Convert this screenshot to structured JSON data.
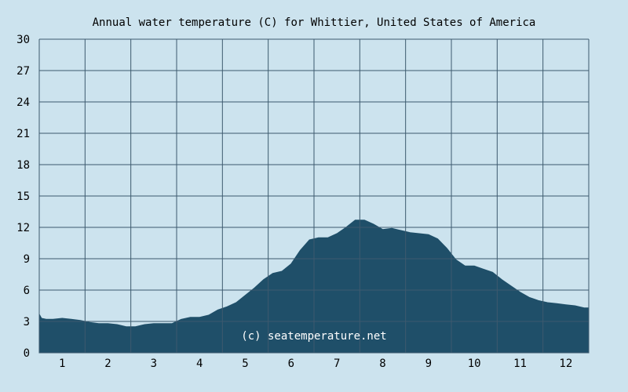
{
  "chart_data": {
    "type": "area",
    "title": "Annual water temperature (C) for Whittier, United States of America",
    "xlabel": "",
    "ylabel": "",
    "ylim": [
      0,
      30
    ],
    "yticks": [
      0,
      3,
      6,
      9,
      12,
      15,
      18,
      21,
      24,
      27,
      30
    ],
    "xlim": [
      0.5,
      12.5
    ],
    "xticks": [
      1,
      2,
      3,
      4,
      5,
      6,
      7,
      8,
      9,
      10,
      11,
      12
    ],
    "grid": true,
    "watermark": "(c) seatemperature.net",
    "colors": {
      "background": "#cce3ee",
      "plot_background": "#cce3ee",
      "area_fill": "#1f4f69",
      "grid_line": "#3d5a6e",
      "text": "#000000"
    },
    "series": [
      {
        "x": [
          0.5,
          0.55,
          0.65,
          0.8,
          1.0,
          1.2,
          1.4,
          1.6,
          1.8,
          2.0,
          2.2,
          2.4,
          2.6,
          2.8,
          3.0,
          3.2,
          3.4,
          3.6,
          3.8,
          4.0,
          4.2,
          4.4,
          4.6,
          4.8,
          5.0,
          5.2,
          5.4,
          5.6,
          5.8,
          6.0,
          6.2,
          6.4,
          6.6,
          6.8,
          7.0,
          7.2,
          7.4,
          7.6,
          7.8,
          8.0,
          8.2,
          8.4,
          8.6,
          8.8,
          9.0,
          9.2,
          9.4,
          9.6,
          9.8,
          10.0,
          10.2,
          10.4,
          10.6,
          10.8,
          11.0,
          11.2,
          11.4,
          11.6,
          11.8,
          12.0,
          12.2,
          12.4,
          12.5
        ],
        "values": [
          3.7,
          3.3,
          3.2,
          3.2,
          3.3,
          3.2,
          3.1,
          2.9,
          2.8,
          2.8,
          2.7,
          2.5,
          2.5,
          2.7,
          2.8,
          2.8,
          2.8,
          3.2,
          3.4,
          3.4,
          3.6,
          4.1,
          4.4,
          4.8,
          5.5,
          6.2,
          7.0,
          7.6,
          7.8,
          8.5,
          9.8,
          10.8,
          11.0,
          11.0,
          11.4,
          12.0,
          12.7,
          12.7,
          12.3,
          11.8,
          11.9,
          11.7,
          11.5,
          11.4,
          11.3,
          10.9,
          10.0,
          8.9,
          8.3,
          8.3,
          8.0,
          7.7,
          7.0,
          6.4,
          5.8,
          5.3,
          5.0,
          4.8,
          4.7,
          4.6,
          4.5,
          4.3,
          4.3
        ]
      }
    ]
  }
}
